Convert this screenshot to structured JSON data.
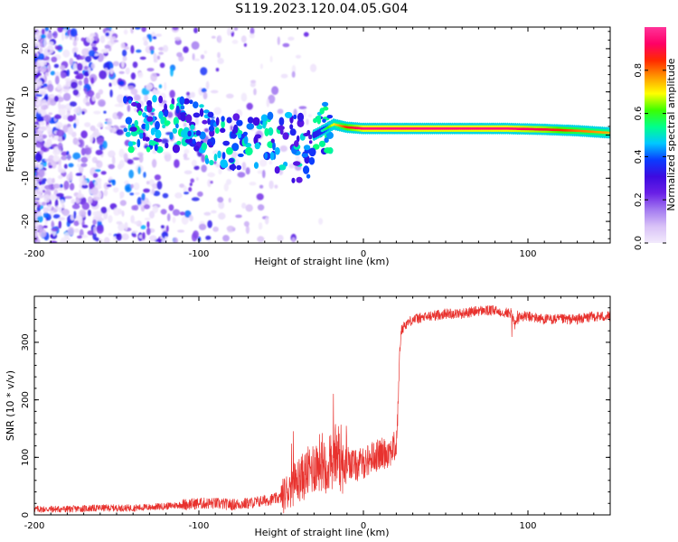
{
  "figure": {
    "title": "S119.2023.120.04.05.G04"
  },
  "colors": {
    "snr_line": "#e8322e",
    "spectrogram_colormap": [
      "#f2eafc",
      "#d9c2f7",
      "#a37af0",
      "#6a1fe6",
      "#3d0ae0",
      "#0a3cff",
      "#00c8ff",
      "#00ff8c",
      "#3cff00",
      "#ffff00",
      "#ff9900",
      "#ff2a00",
      "#ff0066",
      "#ff3399"
    ]
  },
  "chart_data": [
    {
      "type": "heatmap",
      "xlabel": "Height of straight line (km)",
      "ylabel": "Frequency (Hz)",
      "xlim": [
        -200,
        150
      ],
      "ylim": [
        -25,
        25
      ],
      "xticks": [
        {
          "v": -200,
          "t": "-200"
        },
        {
          "v": -100,
          "t": "-100"
        },
        {
          "v": 0,
          "t": "0"
        },
        {
          "v": 100,
          "t": "100"
        }
      ],
      "yticks": [
        {
          "v": -20,
          "t": "-20"
        },
        {
          "v": -10,
          "t": "-10"
        },
        {
          "v": 0,
          "t": "0"
        },
        {
          "v": 10,
          "t": "10"
        },
        {
          "v": 20,
          "t": "20"
        }
      ],
      "colorbar": {
        "label": "Normalized spectral amplitude",
        "range": [
          0,
          1
        ],
        "ticks": [
          {
            "v": 0.0,
            "t": "0.0"
          },
          {
            "v": 0.2,
            "t": "0.2"
          },
          {
            "v": 0.4,
            "t": "0.4"
          },
          {
            "v": 0.6,
            "t": "0.6"
          },
          {
            "v": 0.8,
            "t": "0.8"
          }
        ]
      },
      "trace": [
        {
          "x": -140,
          "f": 2.5,
          "a": 0.4
        },
        {
          "x": -115,
          "f": 2.5,
          "a": 0.5
        },
        {
          "x": -100,
          "f": 1.5,
          "a": 0.45
        },
        {
          "x": -90,
          "f": -2.0,
          "a": 0.4
        },
        {
          "x": -70,
          "f": -1.5,
          "a": 0.4
        },
        {
          "x": -58,
          "f": -1.0,
          "a": 0.45
        },
        {
          "x": -50,
          "f": 4.0,
          "a": 0.45
        },
        {
          "x": -40,
          "f": -2.0,
          "a": 0.4
        },
        {
          "x": -25,
          "f": 1.0,
          "a": 0.5
        },
        {
          "x": -18,
          "f": 2.5,
          "a": 0.7
        },
        {
          "x": -10,
          "f": 1.8,
          "a": 0.85
        },
        {
          "x": 0,
          "f": 1.5,
          "a": 0.95
        },
        {
          "x": 20,
          "f": 1.5,
          "a": 0.95
        },
        {
          "x": 50,
          "f": 1.5,
          "a": 0.95
        },
        {
          "x": 88,
          "f": 1.5,
          "a": 0.95
        },
        {
          "x": 110,
          "f": 1.3,
          "a": 0.9
        },
        {
          "x": 130,
          "f": 1.0,
          "a": 0.8
        },
        {
          "x": 150,
          "f": 0.5,
          "a": 0.75
        }
      ]
    },
    {
      "type": "line",
      "xlabel": "Height of straight line (km)",
      "ylabel": "SNR (10 * v/v)",
      "xlim": [
        -200,
        150
      ],
      "ylim": [
        0,
        380
      ],
      "xticks": [
        {
          "v": -200,
          "t": "-200"
        },
        {
          "v": -100,
          "t": "-100"
        },
        {
          "v": 0,
          "t": "0"
        },
        {
          "v": 100,
          "t": "100"
        }
      ],
      "yticks": [
        {
          "v": 0,
          "t": "0"
        },
        {
          "v": 100,
          "t": "100"
        },
        {
          "v": 200,
          "t": "200"
        },
        {
          "v": 300,
          "t": "300"
        }
      ],
      "series": [
        {
          "x": [
            -200,
            -180,
            -160,
            -140,
            -120,
            -110,
            -100,
            -90,
            -80,
            -70,
            -60,
            -50,
            -45,
            -40,
            -35,
            -30,
            -25,
            -20,
            -18,
            -15,
            -10,
            -5,
            0,
            5,
            10,
            15,
            18,
            20,
            21,
            22,
            23,
            25,
            30,
            40,
            50,
            60,
            70,
            80,
            90,
            92,
            95,
            100,
            110,
            120,
            130,
            140,
            150
          ],
          "y": [
            10,
            10,
            12,
            12,
            15,
            18,
            20,
            20,
            18,
            20,
            25,
            30,
            45,
            60,
            70,
            85,
            95,
            85,
            110,
            100,
            95,
            85,
            90,
            100,
            105,
            110,
            115,
            120,
            180,
            280,
            320,
            330,
            340,
            345,
            350,
            350,
            355,
            355,
            350,
            330,
            345,
            345,
            340,
            340,
            340,
            345,
            345
          ]
        }
      ]
    }
  ]
}
